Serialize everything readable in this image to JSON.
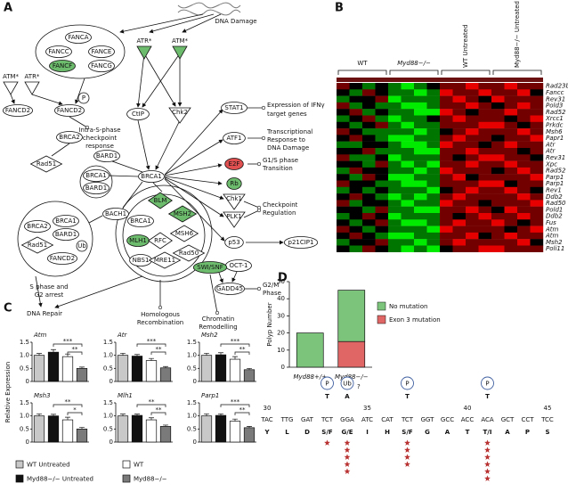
{
  "panels": [
    "A",
    "B",
    "C",
    "D"
  ],
  "diagram": {
    "nodes": [
      "DNA Damage",
      "FANCA",
      "FANCC",
      "FANCE",
      "FANCF",
      "FANCG",
      "ATM*",
      "ATR*",
      "ATR*",
      "ATM*",
      "FANCD2",
      "FANCD2",
      "P",
      "CtIP",
      "Chk2",
      "Intra-S-phase",
      "checkpoint",
      "response",
      "BRCA2",
      "Rad51",
      "BARD1",
      "BRCA1",
      "BARD1",
      "BRCA1",
      "STAT1",
      "Expression of IFNγ",
      "target genes",
      "ATF1",
      "Transcriptional",
      "Response to",
      "DNA Damage",
      "E2F",
      "G1/S phase",
      "Transition",
      "Rb",
      "Chk1",
      "PLK1",
      "Checkpoint",
      "Regulation",
      "p53",
      "p21CIP1",
      "OCT-1",
      "GADD45",
      "G2/M",
      "Phase",
      "BACH1",
      "BRCA2",
      "BRCA1",
      "BARD1",
      "Rad51",
      "Ub",
      "FANCD2",
      "BLM",
      "BRCA1",
      "MSH2",
      "MLH1",
      "RFC",
      "MSH6",
      "NBS1",
      "MRE11",
      "Rad50",
      "SWI/SNF",
      "S phase and",
      "G2 arrest",
      "DNA Repair",
      "Homologous",
      "Recombination",
      "Chromatin",
      "Remodelling"
    ]
  },
  "expression_ylabel": "Relative Expression",
  "expression_legend": [
    {
      "name": "WT Untreated",
      "color": "#c8c8c8"
    },
    {
      "name": "Myd88−/− Untreated",
      "color": "#111111"
    },
    {
      "name": "WT",
      "color": "#ffffff"
    },
    {
      "name": "Myd88−/−",
      "color": "#7a7a7a"
    }
  ],
  "chart_data": [
    {
      "type": "heatmap",
      "groups": [
        "WT",
        "Myd88−/−",
        "WT Untreated",
        "Myd88−/− Untreated"
      ],
      "rows": [
        "Rad23b",
        "Fancc",
        "Rev31",
        "Pold3",
        "Rad52",
        "Xrcc1",
        "Prkdc",
        "Msh6",
        "Papr1",
        "Atr",
        "Atr",
        "Rev31",
        "Xpc",
        "Rad52",
        "Parp1",
        "Parp1",
        "Rev1",
        "Ddb2",
        "Rad50",
        "Pold1",
        "Ddb2",
        "Fus",
        "Atm",
        "Atm",
        "Msh2",
        "Poli11"
      ],
      "values": [
        [
          1,
          0,
          -1,
          0,
          -1,
          -2,
          -1,
          0,
          1,
          1,
          2,
          1,
          1,
          2,
          1,
          1
        ],
        [
          0,
          -1,
          1,
          0,
          -1,
          -1,
          -2,
          -1,
          2,
          1,
          1,
          2,
          1,
          1,
          2,
          0
        ],
        [
          -1,
          0,
          0,
          1,
          -2,
          -1,
          -1,
          -1,
          1,
          2,
          1,
          0,
          2,
          1,
          1,
          1
        ],
        [
          1,
          -1,
          0,
          -1,
          -1,
          -2,
          -2,
          -1,
          1,
          1,
          2,
          1,
          0,
          1,
          2,
          1
        ],
        [
          0,
          1,
          -1,
          0,
          -1,
          -1,
          -2,
          -2,
          2,
          1,
          0,
          1,
          1,
          2,
          1,
          1
        ],
        [
          -1,
          0,
          1,
          -1,
          -2,
          -1,
          -1,
          0,
          1,
          2,
          1,
          1,
          1,
          0,
          1,
          2
        ],
        [
          0,
          -1,
          0,
          1,
          -1,
          -2,
          -1,
          -1,
          1,
          1,
          1,
          2,
          2,
          1,
          0,
          1
        ],
        [
          1,
          0,
          -1,
          -1,
          -1,
          -1,
          -2,
          -1,
          0,
          1,
          2,
          1,
          1,
          1,
          2,
          1
        ],
        [
          0,
          1,
          0,
          -1,
          -2,
          -2,
          -1,
          -1,
          1,
          2,
          1,
          1,
          0,
          1,
          1,
          2
        ],
        [
          -1,
          -1,
          0,
          0,
          -1,
          -2,
          -2,
          -1,
          2,
          1,
          1,
          0,
          1,
          2,
          1,
          1
        ],
        [
          0,
          0,
          1,
          -1,
          -1,
          -1,
          -2,
          -2,
          1,
          1,
          2,
          1,
          1,
          1,
          0,
          1
        ],
        [
          1,
          -1,
          -1,
          0,
          -2,
          -1,
          -1,
          -1,
          1,
          0,
          1,
          2,
          2,
          1,
          1,
          0
        ],
        [
          0,
          0,
          -1,
          1,
          -1,
          -2,
          -1,
          -2,
          1,
          1,
          2,
          1,
          1,
          2,
          1,
          1
        ],
        [
          -1,
          1,
          0,
          0,
          -1,
          -1,
          -2,
          -1,
          2,
          1,
          1,
          1,
          0,
          1,
          2,
          1
        ],
        [
          0,
          -1,
          1,
          0,
          -2,
          -2,
          -1,
          -1,
          1,
          2,
          0,
          1,
          1,
          1,
          1,
          2
        ],
        [
          1,
          0,
          0,
          -1,
          -1,
          -2,
          -2,
          -1,
          1,
          1,
          1,
          2,
          2,
          0,
          1,
          1
        ],
        [
          -1,
          0,
          -1,
          0,
          -1,
          -1,
          -1,
          -2,
          0,
          1,
          2,
          1,
          1,
          2,
          1,
          0
        ],
        [
          0,
          1,
          0,
          -1,
          -2,
          -1,
          -2,
          -1,
          1,
          2,
          1,
          1,
          1,
          1,
          2,
          1
        ],
        [
          1,
          -1,
          0,
          0,
          -1,
          -2,
          -1,
          -1,
          2,
          1,
          1,
          0,
          1,
          1,
          1,
          2
        ],
        [
          0,
          0,
          -1,
          1,
          -1,
          -1,
          -2,
          -2,
          1,
          1,
          2,
          1,
          0,
          2,
          1,
          1
        ],
        [
          -1,
          0,
          1,
          0,
          -2,
          -1,
          -1,
          -1,
          1,
          0,
          1,
          2,
          1,
          1,
          2,
          1
        ],
        [
          0,
          -1,
          0,
          1,
          -1,
          -2,
          -2,
          -1,
          1,
          2,
          1,
          1,
          2,
          1,
          0,
          1
        ],
        [
          1,
          0,
          -1,
          0,
          -1,
          -1,
          -1,
          -2,
          2,
          1,
          1,
          1,
          1,
          0,
          1,
          2
        ],
        [
          0,
          1,
          0,
          -1,
          -2,
          -2,
          -1,
          -1,
          1,
          1,
          2,
          0,
          1,
          2,
          1,
          1
        ],
        [
          -1,
          0,
          0,
          1,
          -1,
          -1,
          -2,
          -1,
          1,
          2,
          1,
          1,
          1,
          1,
          2,
          0
        ],
        [
          0,
          -1,
          1,
          0,
          -1,
          -2,
          -1,
          -2,
          0,
          1,
          1,
          2,
          2,
          1,
          1,
          1
        ]
      ]
    },
    {
      "type": "bar",
      "title": "Atm",
      "values": [
        1,
        1.12,
        0.95,
        0.5
      ],
      "errors": [
        0.07,
        0.1,
        0.1,
        0.05
      ],
      "ylim": [
        0,
        1.5
      ],
      "yticks": [
        0,
        0.5,
        {
          "value": 1,
          "label": "1.0"
        },
        1.5
      ],
      "brackets": [
        {
          "bars": [
            1,
            3
          ],
          "label": "***"
        },
        {
          "bars": [
            2,
            3
          ],
          "label": "**"
        }
      ]
    },
    {
      "type": "bar",
      "title": "Atr",
      "values": [
        1,
        0.97,
        0.8,
        0.52
      ],
      "errors": [
        0.08,
        0.06,
        0.08,
        0.05
      ],
      "ylim": [
        0,
        1.5
      ],
      "yticks": [
        0,
        0.5,
        {
          "value": 1,
          "label": "1.0"
        },
        1.5
      ],
      "brackets": [
        {
          "bars": [
            1,
            3
          ],
          "label": "***"
        },
        {
          "bars": [
            2,
            3
          ],
          "label": "**"
        }
      ]
    },
    {
      "type": "bar",
      "title": "Msh2",
      "values": [
        1,
        1.02,
        0.85,
        0.45
      ],
      "errors": [
        0.08,
        0.08,
        0.1,
        0.05
      ],
      "ylim": [
        0,
        1.5
      ],
      "yticks": [
        0,
        0.5,
        {
          "value": 1,
          "label": "1.0"
        },
        1.5
      ],
      "brackets": [
        {
          "bars": [
            1,
            3
          ],
          "label": "***"
        },
        {
          "bars": [
            2,
            3
          ],
          "label": "**"
        }
      ]
    },
    {
      "type": "bar",
      "title": "Msh3",
      "values": [
        1,
        1,
        0.85,
        0.5
      ],
      "errors": [
        0.08,
        0.06,
        0.1,
        0.06
      ],
      "ylim": [
        0,
        1.5
      ],
      "yticks": [
        0,
        0.5,
        {
          "value": 1,
          "label": "1.0"
        },
        1.5
      ],
      "brackets": [
        {
          "bars": [
            1,
            3
          ],
          "label": "**"
        },
        {
          "bars": [
            2,
            3
          ],
          "label": "*"
        }
      ]
    },
    {
      "type": "bar",
      "title": "Mlh1",
      "values": [
        1,
        1.02,
        0.85,
        0.6
      ],
      "errors": [
        0.07,
        0.05,
        0.08,
        0.05
      ],
      "ylim": [
        0,
        1.5
      ],
      "yticks": [
        0,
        0.5,
        {
          "value": 1,
          "label": "1.0"
        },
        1.5
      ],
      "brackets": [
        {
          "bars": [
            1,
            3
          ],
          "label": "**"
        },
        {
          "bars": [
            2,
            3
          ],
          "label": "**"
        }
      ]
    },
    {
      "type": "bar",
      "title": "Parp1",
      "values": [
        1,
        1.02,
        0.8,
        0.55
      ],
      "errors": [
        0.08,
        0.06,
        0.08,
        0.05
      ],
      "ylim": [
        0,
        1.5
      ],
      "yticks": [
        0,
        0.5,
        {
          "value": 1,
          "label": "1.0"
        },
        1.5
      ],
      "brackets": [
        {
          "bars": [
            1,
            3
          ],
          "label": "***"
        },
        {
          "bars": [
            2,
            3
          ],
          "label": "**"
        }
      ]
    },
    {
      "type": "stacked_bar",
      "ylabel": "Polyp Number",
      "categories": [
        "Myd88+/+",
        "Myd88−/−"
      ],
      "series": [
        {
          "name": "No mutation",
          "color": "#7cc47c",
          "values": [
            20,
            30
          ]
        },
        {
          "name": "Exon 3 mutation",
          "color": "#e06666",
          "values": [
            0,
            15
          ]
        }
      ],
      "ylim": [
        0,
        50
      ],
      "yticks": [
        0,
        10,
        20,
        30,
        40,
        50
      ]
    }
  ],
  "sequence": {
    "positions": [
      30,
      35,
      40,
      45
    ],
    "codons": [
      {
        "codon": "TAC",
        "aa": "Y"
      },
      {
        "codon": "TTG",
        "aa": "L"
      },
      {
        "codon": "GAT",
        "aa": "D"
      },
      {
        "codon": "TCT",
        "aa": "S/F",
        "site": "T",
        "mod": "P",
        "mutations": 1
      },
      {
        "codon": "GGA",
        "aa": "G/E",
        "site": "A",
        "mod": "Ub",
        "note": "?",
        "mutations": 5
      },
      {
        "codon": "ATC",
        "aa": "I"
      },
      {
        "codon": "CAT",
        "aa": "H"
      },
      {
        "codon": "TCT",
        "aa": "S/F",
        "site": "T",
        "mod": "P",
        "mutations": 4
      },
      {
        "codon": "GGT",
        "aa": "G"
      },
      {
        "codon": "GCC",
        "aa": "A"
      },
      {
        "codon": "ACC",
        "aa": "T"
      },
      {
        "codon": "ACA",
        "aa": "T/I",
        "site": "T",
        "mod": "P",
        "mutations": 6
      },
      {
        "codon": "GCT",
        "aa": "A"
      },
      {
        "codon": "CCT",
        "aa": "P"
      },
      {
        "codon": "TCC",
        "aa": "S"
      }
    ]
  }
}
